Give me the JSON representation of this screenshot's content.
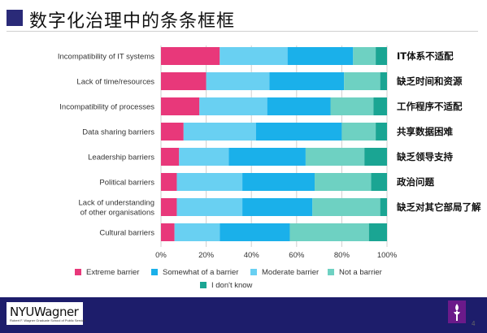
{
  "slide": {
    "title": "数字化治理中的条条框框",
    "page_number": "4"
  },
  "footer": {
    "logo_text": "NYUWagner",
    "logo_subtext": "Robert F. Wagner Graduate School of Public Service"
  },
  "colors": {
    "extreme": "#e8387a",
    "somewhat": "#1ab0ea",
    "moderate": "#69d0f2",
    "not": "#6ed1c2",
    "dont_know": "#1aa593",
    "accent": "#2a2a78",
    "footer": "#1d1d6b"
  },
  "chart_data": {
    "type": "bar",
    "orientation": "horizontal",
    "stacked": true,
    "categories": [
      "Incompatibility of IT systems",
      "Lack of time/resources",
      "Incompatibility of processes",
      "Data sharing barriers",
      "Leadership barriers",
      "Political barriers",
      "Lack of understanding\nof other organisations",
      "Cultural barriers"
    ],
    "category_translations": [
      "IT体系不适配",
      "缺乏时间和资源",
      "工作程序不适配",
      "共享数据困难",
      "缺乏领导支持",
      "政治问题",
      "缺乏对其它部局了解",
      ""
    ],
    "series": [
      {
        "name": "Extreme barrier",
        "color": "#e8387a",
        "values": [
          26,
          20,
          17,
          10,
          8,
          7,
          7,
          6
        ]
      },
      {
        "name": "Moderate barrier",
        "color": "#69d0f2",
        "values": [
          30,
          28,
          30,
          32,
          22,
          29,
          29,
          20
        ]
      },
      {
        "name": "Somewhat of a barrier",
        "color": "#1ab0ea",
        "values": [
          29,
          33,
          28,
          38,
          34,
          32,
          31,
          31
        ]
      },
      {
        "name": "Not a barrier",
        "color": "#6ed1c2",
        "values": [
          10,
          16,
          19,
          15,
          26,
          25,
          30,
          35
        ]
      },
      {
        "name": "I don't know",
        "color": "#1aa593",
        "values": [
          5,
          3,
          6,
          5,
          10,
          7,
          3,
          8
        ]
      }
    ],
    "legend_order": [
      "Extreme barrier",
      "Somewhat of a barrier",
      "Moderate barrier",
      "Not a barrier",
      "I don't know"
    ],
    "xticks": [
      "0%",
      "20%",
      "40%",
      "60%",
      "80%",
      "100%"
    ],
    "xlim": [
      0,
      100
    ],
    "xlabel": "",
    "ylabel": "",
    "grid": true,
    "legend_position": "bottom"
  }
}
